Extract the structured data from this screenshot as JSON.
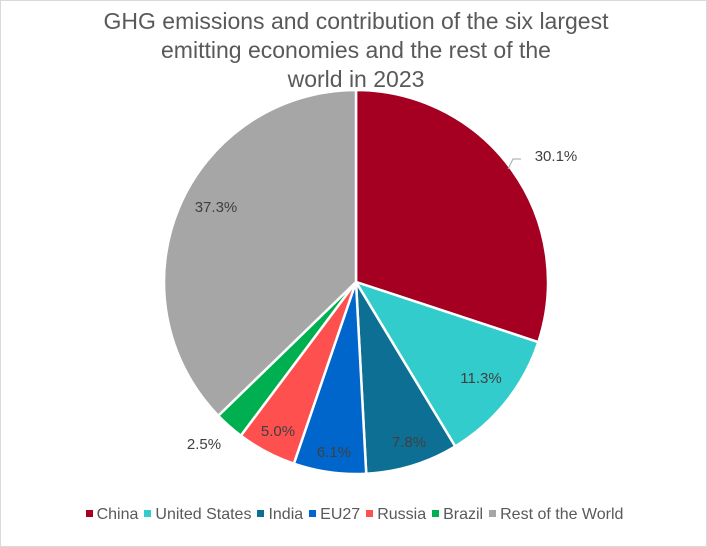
{
  "chart_data": {
    "type": "pie",
    "title": "GHG emissions and contribution of the six largest\nemitting economies and the rest of the\nworld in 2023",
    "legend_position": "bottom",
    "slices": [
      {
        "label": "China",
        "value": 30.1,
        "value_label": "30.1%",
        "color": "#a50021"
      },
      {
        "label": "United States",
        "value": 11.3,
        "value_label": "11.3%",
        "color": "#33cccc"
      },
      {
        "label": "India",
        "value": 7.8,
        "value_label": "7.8%",
        "color": "#0e6f94"
      },
      {
        "label": "EU27",
        "value": 6.1,
        "value_label": "6.1%",
        "color": "#0066cc"
      },
      {
        "label": "Russia",
        "value": 5.0,
        "value_label": "5.0%",
        "color": "#ff5050"
      },
      {
        "label": "Brazil",
        "value": 2.5,
        "value_label": "2.5%",
        "color": "#00b050"
      },
      {
        "label": "Rest of the World",
        "value": 37.3,
        "value_label": "37.3%",
        "color": "#a6a6a6"
      }
    ]
  }
}
